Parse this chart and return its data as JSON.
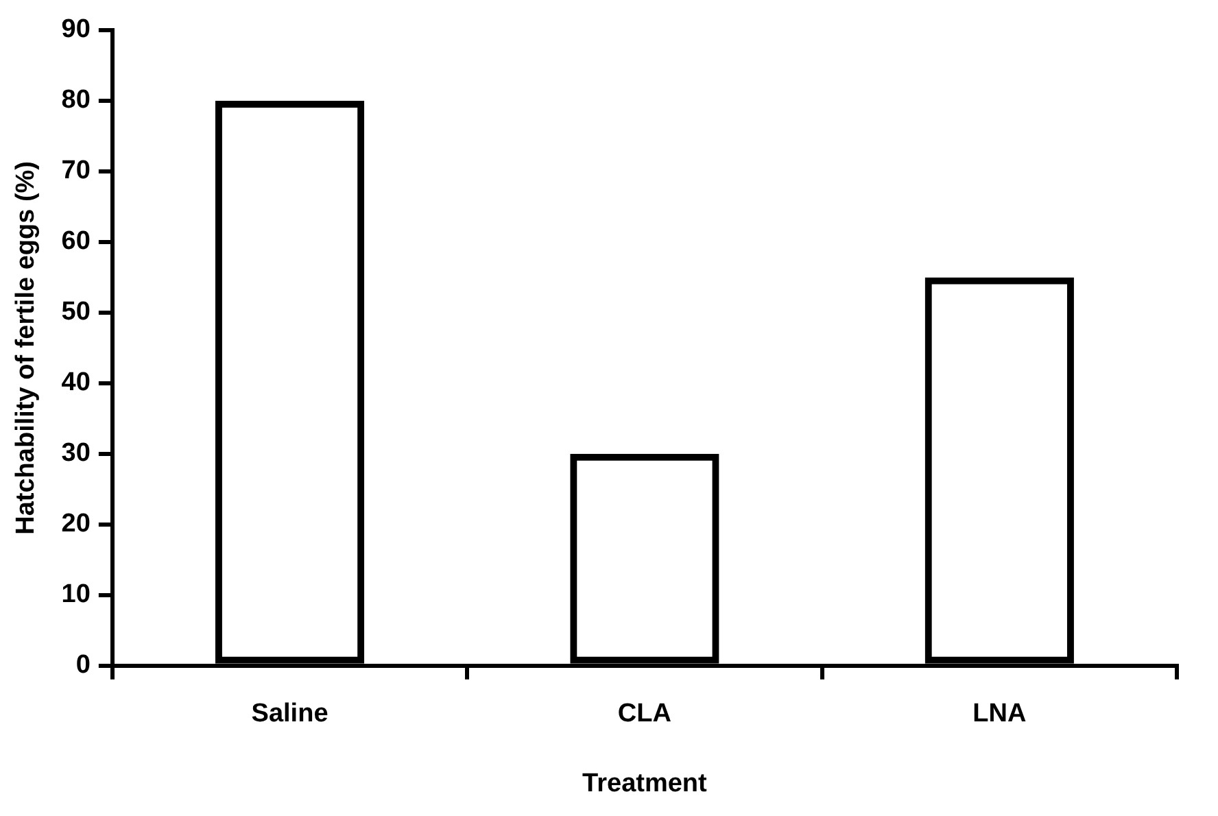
{
  "chart_data": {
    "type": "bar",
    "xlabel": "Treatment",
    "ylabel": "Hatchability of fertile eggs (%)",
    "categories": [
      "Saline",
      "CLA",
      "LNA"
    ],
    "values": [
      80,
      30,
      55
    ],
    "color": "#000000",
    "ylim": [
      0,
      90
    ],
    "yticks": [
      0,
      10,
      20,
      30,
      40,
      50,
      60,
      70,
      80,
      90
    ],
    "grid": false,
    "legend": false
  }
}
